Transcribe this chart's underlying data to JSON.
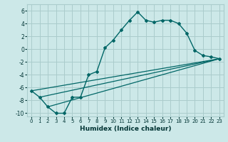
{
  "xlabel": "Humidex (Indice chaleur)",
  "bg_color": "#cce8e8",
  "grid_color": "#aacccc",
  "line_color": "#006666",
  "xlim": [
    -0.5,
    23.5
  ],
  "ylim": [
    -10.5,
    7.0
  ],
  "yticks": [
    -10,
    -8,
    -6,
    -4,
    -2,
    0,
    2,
    4,
    6
  ],
  "xticks": [
    0,
    1,
    2,
    3,
    4,
    5,
    6,
    7,
    8,
    9,
    10,
    11,
    12,
    13,
    14,
    15,
    16,
    17,
    18,
    19,
    20,
    21,
    22,
    23
  ],
  "curve1_x": [
    0,
    1,
    2,
    3,
    4,
    5,
    6,
    7,
    8,
    9,
    10,
    11,
    12,
    13,
    14,
    15,
    16,
    17,
    18,
    19,
    20,
    21,
    22,
    23
  ],
  "curve1_y": [
    -6.5,
    -7.5,
    -9.0,
    -10.0,
    -10.0,
    -7.5,
    -7.5,
    -4.0,
    -3.5,
    0.2,
    1.4,
    3.0,
    4.5,
    5.8,
    4.5,
    4.2,
    4.5,
    4.5,
    4.0,
    2.5,
    -0.2,
    -1.0,
    -1.2,
    -1.5
  ],
  "line1_x": [
    0,
    23
  ],
  "line1_y": [
    -6.5,
    -1.5
  ],
  "line2_x": [
    1,
    23
  ],
  "line2_y": [
    -7.5,
    -1.5
  ],
  "line3_x": [
    2,
    23
  ],
  "line3_y": [
    -9.0,
    -1.5
  ]
}
